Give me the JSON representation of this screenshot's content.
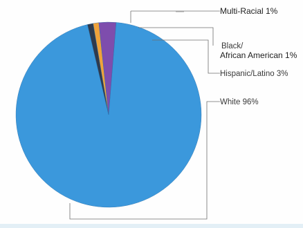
{
  "chart_data": {
    "type": "pie",
    "title": "",
    "slices": [
      {
        "label": "White 96%",
        "value": 96,
        "color": "#3b98dc"
      },
      {
        "label": "Multi-Racial 1%",
        "value": 1,
        "color": "#2f3a4d"
      },
      {
        "label_lines": [
          "Black/",
          "African American 1%"
        ],
        "value": 1,
        "color": "#f0a23a"
      },
      {
        "label": "Hispanic/Latino 3%",
        "value": 3,
        "color": "#7e4dad"
      }
    ]
  }
}
